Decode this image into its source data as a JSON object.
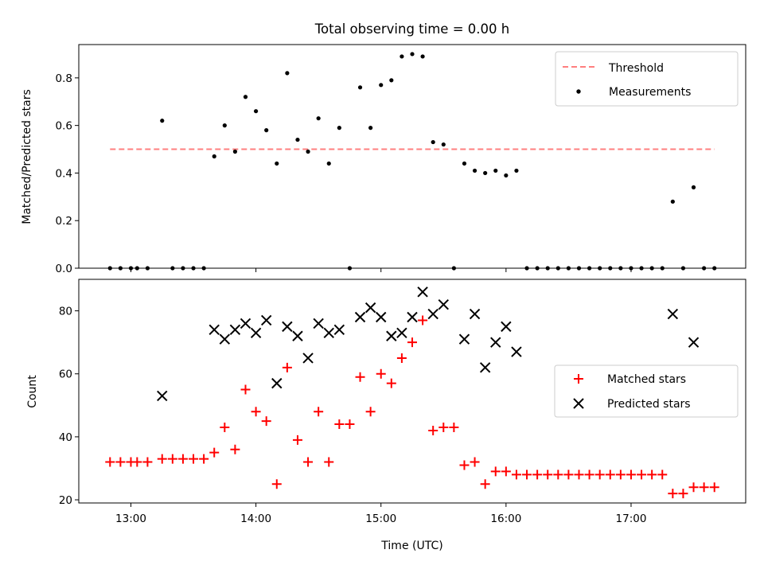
{
  "figure": {
    "title": "Total observing time = 0.00 h"
  },
  "chart_data": [
    {
      "type": "scatter",
      "title": "Total observing time = 0.00 h",
      "xlabel": "",
      "ylabel": "Matched/Predicted stars",
      "xlim": [
        "12:35",
        "17:55"
      ],
      "ylim": [
        0,
        0.94
      ],
      "yticks": [
        0.0,
        0.2,
        0.4,
        0.6,
        0.8
      ],
      "ytick_labels": [
        "0.0",
        "0.2",
        "0.4",
        "0.6",
        "0.8"
      ],
      "xticks": [
        "13:00",
        "14:00",
        "15:00",
        "16:00",
        "17:00"
      ],
      "show_xtick_labels": false,
      "grid": false,
      "legend_position": "top-right",
      "threshold": {
        "name": "Threshold",
        "value": 0.5,
        "x_range": [
          "12:50",
          "17:40"
        ],
        "color": "#ff7f7f",
        "style": "dashed"
      },
      "series": [
        {
          "name": "Measurements",
          "marker": "dot",
          "color": "#000000",
          "points": [
            [
              "12:50",
              0.0
            ],
            [
              "12:55",
              0.0
            ],
            [
              "13:00",
              0.0
            ],
            [
              "13:03",
              0.0
            ],
            [
              "13:08",
              0.0
            ],
            [
              "13:15",
              0.62
            ],
            [
              "13:20",
              0.0
            ],
            [
              "13:25",
              0.0
            ],
            [
              "13:30",
              0.0
            ],
            [
              "13:35",
              0.0
            ],
            [
              "13:40",
              0.47
            ],
            [
              "13:45",
              0.6
            ],
            [
              "13:50",
              0.49
            ],
            [
              "13:55",
              0.72
            ],
            [
              "14:00",
              0.66
            ],
            [
              "14:05",
              0.58
            ],
            [
              "14:10",
              0.44
            ],
            [
              "14:15",
              0.82
            ],
            [
              "14:20",
              0.54
            ],
            [
              "14:25",
              0.49
            ],
            [
              "14:30",
              0.63
            ],
            [
              "14:35",
              0.44
            ],
            [
              "14:40",
              0.59
            ],
            [
              "14:45",
              0.0
            ],
            [
              "14:50",
              0.76
            ],
            [
              "14:55",
              0.59
            ],
            [
              "15:00",
              0.77
            ],
            [
              "15:05",
              0.79
            ],
            [
              "15:10",
              0.89
            ],
            [
              "15:15",
              0.9
            ],
            [
              "15:20",
              0.89
            ],
            [
              "15:25",
              0.53
            ],
            [
              "15:30",
              0.52
            ],
            [
              "15:35",
              0.0
            ],
            [
              "15:40",
              0.44
            ],
            [
              "15:45",
              0.41
            ],
            [
              "15:50",
              0.4
            ],
            [
              "15:55",
              0.41
            ],
            [
              "16:00",
              0.39
            ],
            [
              "16:05",
              0.41
            ],
            [
              "16:10",
              0.0
            ],
            [
              "16:15",
              0.0
            ],
            [
              "16:20",
              0.0
            ],
            [
              "16:25",
              0.0
            ],
            [
              "16:30",
              0.0
            ],
            [
              "16:35",
              0.0
            ],
            [
              "16:40",
              0.0
            ],
            [
              "16:45",
              0.0
            ],
            [
              "16:50",
              0.0
            ],
            [
              "16:55",
              0.0
            ],
            [
              "17:00",
              0.0
            ],
            [
              "17:05",
              0.0
            ],
            [
              "17:10",
              0.0
            ],
            [
              "17:15",
              0.0
            ],
            [
              "17:20",
              0.28
            ],
            [
              "17:25",
              0.0
            ],
            [
              "17:30",
              0.34
            ],
            [
              "17:35",
              0.0
            ],
            [
              "17:40",
              0.0
            ]
          ]
        }
      ]
    },
    {
      "type": "scatter",
      "title": "",
      "xlabel": "Time (UTC)",
      "ylabel": "Count",
      "xlim": [
        "12:35",
        "17:55"
      ],
      "ylim": [
        19,
        90
      ],
      "yticks": [
        20,
        40,
        60,
        80
      ],
      "ytick_labels": [
        "20",
        "40",
        "60",
        "80"
      ],
      "xticks": [
        "13:00",
        "14:00",
        "15:00",
        "16:00",
        "17:00"
      ],
      "xtick_labels": [
        "13:00",
        "14:00",
        "15:00",
        "16:00",
        "17:00"
      ],
      "show_xtick_labels": true,
      "grid": false,
      "legend_position": "center-right",
      "series": [
        {
          "name": "Matched stars",
          "marker": "plus",
          "color": "#ff0000",
          "points": [
            [
              "12:50",
              32
            ],
            [
              "12:55",
              32
            ],
            [
              "13:00",
              32
            ],
            [
              "13:03",
              32
            ],
            [
              "13:08",
              32
            ],
            [
              "13:15",
              33
            ],
            [
              "13:20",
              33
            ],
            [
              "13:25",
              33
            ],
            [
              "13:30",
              33
            ],
            [
              "13:35",
              33
            ],
            [
              "13:40",
              35
            ],
            [
              "13:45",
              43
            ],
            [
              "13:50",
              36
            ],
            [
              "13:55",
              55
            ],
            [
              "14:00",
              48
            ],
            [
              "14:05",
              45
            ],
            [
              "14:10",
              25
            ],
            [
              "14:15",
              62
            ],
            [
              "14:20",
              39
            ],
            [
              "14:25",
              32
            ],
            [
              "14:30",
              48
            ],
            [
              "14:35",
              32
            ],
            [
              "14:40",
              44
            ],
            [
              "14:45",
              44
            ],
            [
              "14:50",
              59
            ],
            [
              "14:55",
              48
            ],
            [
              "15:00",
              60
            ],
            [
              "15:05",
              57
            ],
            [
              "15:10",
              65
            ],
            [
              "15:15",
              70
            ],
            [
              "15:20",
              77
            ],
            [
              "15:25",
              42
            ],
            [
              "15:30",
              43
            ],
            [
              "15:35",
              43
            ],
            [
              "15:40",
              31
            ],
            [
              "15:45",
              32
            ],
            [
              "15:50",
              25
            ],
            [
              "15:55",
              29
            ],
            [
              "16:00",
              29
            ],
            [
              "16:05",
              28
            ],
            [
              "16:10",
              28
            ],
            [
              "16:15",
              28
            ],
            [
              "16:20",
              28
            ],
            [
              "16:25",
              28
            ],
            [
              "16:30",
              28
            ],
            [
              "16:35",
              28
            ],
            [
              "16:40",
              28
            ],
            [
              "16:45",
              28
            ],
            [
              "16:50",
              28
            ],
            [
              "16:55",
              28
            ],
            [
              "17:00",
              28
            ],
            [
              "17:05",
              28
            ],
            [
              "17:10",
              28
            ],
            [
              "17:15",
              28
            ],
            [
              "17:20",
              22
            ],
            [
              "17:25",
              22
            ],
            [
              "17:30",
              24
            ],
            [
              "17:35",
              24
            ],
            [
              "17:40",
              24
            ]
          ]
        },
        {
          "name": "Predicted stars",
          "marker": "x",
          "color": "#000000",
          "points": [
            [
              "13:15",
              53
            ],
            [
              "13:40",
              74
            ],
            [
              "13:45",
              71
            ],
            [
              "13:50",
              74
            ],
            [
              "13:55",
              76
            ],
            [
              "14:00",
              73
            ],
            [
              "14:05",
              77
            ],
            [
              "14:10",
              57
            ],
            [
              "14:15",
              75
            ],
            [
              "14:20",
              72
            ],
            [
              "14:25",
              65
            ],
            [
              "14:30",
              76
            ],
            [
              "14:35",
              73
            ],
            [
              "14:40",
              74
            ],
            [
              "14:50",
              78
            ],
            [
              "14:55",
              81
            ],
            [
              "15:00",
              78
            ],
            [
              "15:05",
              72
            ],
            [
              "15:10",
              73
            ],
            [
              "15:15",
              78
            ],
            [
              "15:20",
              86
            ],
            [
              "15:25",
              79
            ],
            [
              "15:30",
              82
            ],
            [
              "15:40",
              71
            ],
            [
              "15:45",
              79
            ],
            [
              "15:50",
              62
            ],
            [
              "15:55",
              70
            ],
            [
              "16:00",
              75
            ],
            [
              "16:05",
              67
            ],
            [
              "17:20",
              79
            ],
            [
              "17:30",
              70
            ]
          ]
        }
      ]
    }
  ]
}
